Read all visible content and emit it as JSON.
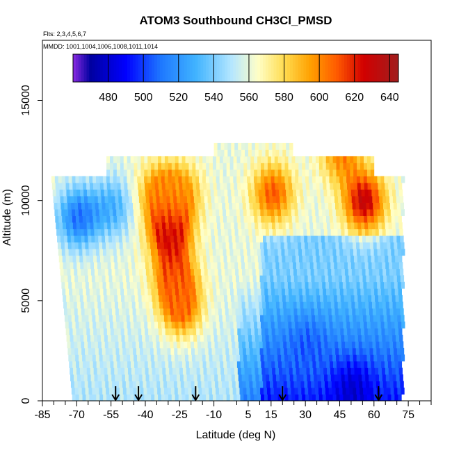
{
  "chart_data": {
    "type": "heatmap",
    "title": "ATOM3 Southbound CH3Cl_PMSD",
    "subtitle_lines": [
      "Flts: 2,3,4,5,6,7",
      "MMDD: 1001,1004,1006,1008,1011,1014"
    ],
    "xlabel": "Latitude (deg N)",
    "ylabel": "Altitude (m)",
    "xlim": [
      -85,
      85
    ],
    "ylim": [
      0,
      18000
    ],
    "x_ticks": [
      -85,
      -70,
      -55,
      -40,
      -25,
      -10,
      5,
      15,
      30,
      45,
      60,
      75
    ],
    "x_minor_ticks": [
      -80,
      -75,
      -65,
      -60,
      -50,
      -45,
      -35,
      -30,
      -20,
      -15,
      0,
      10,
      20,
      25,
      35,
      40,
      50,
      55,
      65,
      70,
      80,
      85
    ],
    "y_ticks": [
      0,
      5000,
      10000,
      15000
    ],
    "colorbar": {
      "range": [
        460,
        645
      ],
      "ticks": [
        480,
        500,
        520,
        540,
        560,
        580,
        600,
        620,
        640
      ],
      "colors": [
        "#8a2be2",
        "#0000a0",
        "#0000ff",
        "#1e78ff",
        "#41b4ff",
        "#b4e6ff",
        "#ffffc8",
        "#ffdc50",
        "#ffa000",
        "#ff5a00",
        "#d20000",
        "#a01e1e"
      ],
      "color_stops": [
        460,
        470,
        490,
        510,
        530,
        550,
        565,
        580,
        595,
        610,
        625,
        645
      ]
    },
    "flight_markers_lat": [
      -53,
      -43,
      -18,
      20,
      62
    ],
    "grid": false,
    "legend": "colorbar-top",
    "data_extent": {
      "lat_range": [
        -82,
        72
      ],
      "alt_range": [
        0,
        12700
      ]
    },
    "features": [
      {
        "lat": -35,
        "alt": 10200,
        "value": 600
      },
      {
        "lat": -25,
        "alt": 10200,
        "value": 595
      },
      {
        "lat": -30,
        "alt": 8300,
        "value": 630
      },
      {
        "lat": -28,
        "alt": 6000,
        "value": 610
      },
      {
        "lat": -25,
        "alt": 4500,
        "value": 605
      },
      {
        "lat": 15,
        "alt": 10200,
        "value": 610
      },
      {
        "lat": 55,
        "alt": 9800,
        "value": 630
      },
      {
        "lat": 45,
        "alt": 12200,
        "value": 600
      },
      {
        "lat": 30,
        "alt": 2500,
        "value": 505
      },
      {
        "lat": 50,
        "alt": 300,
        "value": 480
      },
      {
        "lat": -70,
        "alt": 9000,
        "value": 510
      },
      {
        "lat": -55,
        "alt": 9500,
        "value": 530
      }
    ]
  }
}
